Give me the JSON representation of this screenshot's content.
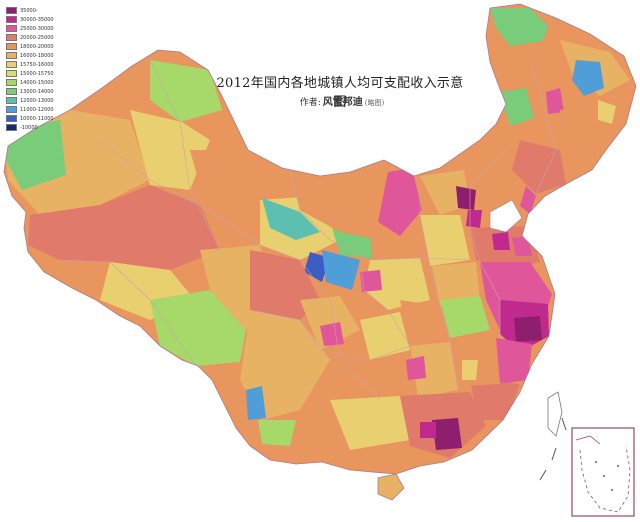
{
  "map": {
    "title": "2012年国内各地城镇人均可支配收入示意图",
    "author_prefix": "作者:",
    "author_name": "风雷邦迪",
    "author_note": "(略图)"
  },
  "legend": [
    {
      "label": "35000-",
      "color": "#8e1f6e"
    },
    {
      "label": "30000-35000",
      "color": "#c02a8e"
    },
    {
      "label": "25000-30000",
      "color": "#e0569a"
    },
    {
      "label": "20000-25000",
      "color": "#e07a6a"
    },
    {
      "label": "18000-20000",
      "color": "#e8955e"
    },
    {
      "label": "16000-18000",
      "color": "#e8b265"
    },
    {
      "label": "15750-16000",
      "color": "#e8d070"
    },
    {
      "label": "15000-15750",
      "color": "#d6de70"
    },
    {
      "label": "14000-15000",
      "color": "#a6d86a"
    },
    {
      "label": "13000-14000",
      "color": "#78cc7a"
    },
    {
      "label": "12000-13000",
      "color": "#5cc0b0"
    },
    {
      "label": "11000-12000",
      "color": "#4f9ed8"
    },
    {
      "label": "10000-11000",
      "color": "#3c5ec4"
    },
    {
      "label": "-10000",
      "color": "#1c2a70"
    }
  ],
  "colors": {
    "border": "#c9a2ae",
    "sea_border": "#777777",
    "background": "#ffffff"
  }
}
